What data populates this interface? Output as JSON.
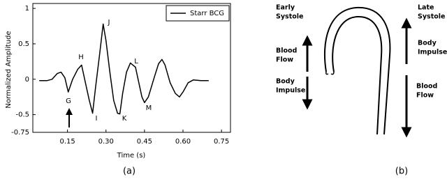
{
  "chart_data": {
    "type": "line",
    "x_label": "Time (s)",
    "y_label": "Normalized Amplitude",
    "x": [
      0.04,
      0.07,
      0.09,
      0.11,
      0.125,
      0.14,
      0.153,
      0.17,
      0.19,
      0.205,
      0.22,
      0.235,
      0.248,
      0.26,
      0.275,
      0.289,
      0.3,
      0.315,
      0.33,
      0.345,
      0.354,
      0.365,
      0.38,
      0.395,
      0.405,
      0.415,
      0.425,
      0.44,
      0.45,
      0.465,
      0.49,
      0.505,
      0.518,
      0.53,
      0.55,
      0.57,
      0.586,
      0.6,
      0.62,
      0.64,
      0.67,
      0.7
    ],
    "series": [
      {
        "name": "Starr BCG",
        "color": "#000000",
        "values": [
          -0.02,
          -0.02,
          0,
          0.08,
          0.1,
          0.02,
          -0.18,
          0,
          0.14,
          0.2,
          -0.05,
          -0.3,
          -0.48,
          -0.1,
          0.35,
          0.78,
          0.55,
          0.1,
          -0.3,
          -0.48,
          -0.49,
          -0.2,
          0.1,
          0.23,
          0.2,
          0.17,
          0,
          -0.25,
          -0.33,
          -0.25,
          0.05,
          0.22,
          0.28,
          0.2,
          -0.05,
          -0.2,
          -0.25,
          -0.18,
          -0.05,
          -0.01,
          -0.02,
          -0.02
        ]
      }
    ],
    "xlim": [
      0.015,
      0.785
    ],
    "xticks": [
      {
        "value": 0.15,
        "label": "0.15"
      },
      {
        "value": 0.3,
        "label": "0.30"
      },
      0.45,
      {
        "value": 0.6,
        "label": "0.60"
      },
      0.75
    ],
    "ylim": [
      -0.75,
      1.07
    ],
    "yticks": [
      -0.75,
      -0.5,
      0,
      0.5,
      1
    ],
    "grid": false,
    "legend": "upper right",
    "annotations": [
      "H",
      "G",
      "I",
      "J",
      "K",
      "L",
      "M"
    ],
    "caption": "(a)"
  },
  "diagram": {
    "caption": "(b)",
    "left_title": [
      "Early",
      "Systole"
    ],
    "left_up": [
      "Blood",
      "Flow"
    ],
    "left_down": [
      "Body",
      "Impulse"
    ],
    "right_title": [
      "Late",
      "Systole"
    ],
    "right_up": [
      "Body",
      "Impulse"
    ],
    "right_down": [
      "Blood",
      "Flow"
    ]
  }
}
